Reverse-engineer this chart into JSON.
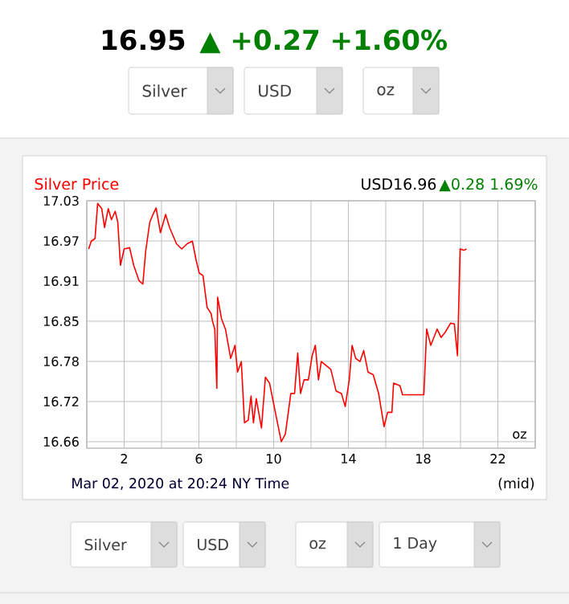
{
  "chart_data": {
    "type": "line",
    "title": "Silver Price",
    "color": "#ff0000",
    "grid": true,
    "x": [
      0.1,
      0.24,
      0.44,
      0.58,
      0.8,
      0.95,
      1.15,
      1.32,
      1.52,
      1.66,
      1.8,
      2.0,
      2.29,
      2.51,
      2.8,
      3.0,
      3.15,
      3.37,
      3.54,
      3.71,
      3.94,
      4.22,
      4.43,
      4.8,
      5.08,
      5.37,
      5.65,
      5.85,
      6.02,
      6.22,
      6.44,
      6.65,
      6.73,
      6.85,
      6.96,
      7.0,
      7.21,
      7.42,
      7.7,
      7.93,
      8.07,
      8.27,
      8.44,
      8.64,
      8.79,
      8.92,
      9.07,
      9.35,
      9.56,
      9.78,
      10.12,
      10.41,
      10.63,
      10.92,
      11.12,
      11.29,
      11.44,
      11.63,
      11.86,
      12.06,
      12.23,
      12.4,
      12.55,
      13.06,
      13.34,
      13.63,
      13.83,
      14.05,
      14.2,
      14.39,
      14.62,
      14.82,
      15.05,
      15.33,
      15.62,
      15.91,
      16.1,
      16.33,
      16.42,
      16.76,
      16.9,
      18.04,
      18.19,
      18.41,
      18.75,
      18.96,
      19.18,
      19.47,
      19.67,
      19.84,
      19.98,
      20.18,
      20.32
    ],
    "values": [
      16.956,
      16.968,
      16.972,
      17.026,
      17.018,
      16.989,
      17.018,
      17.001,
      17.014,
      16.997,
      16.931,
      16.956,
      16.958,
      16.931,
      16.907,
      16.902,
      16.952,
      16.997,
      17.009,
      17.019,
      16.981,
      17.009,
      16.989,
      16.964,
      16.956,
      16.964,
      16.968,
      16.939,
      16.919,
      16.915,
      16.866,
      16.857,
      16.845,
      16.833,
      16.742,
      16.882,
      16.849,
      16.833,
      16.788,
      16.808,
      16.767,
      16.783,
      16.689,
      16.693,
      16.73,
      16.689,
      16.726,
      16.681,
      16.759,
      16.75,
      16.701,
      16.66,
      16.672,
      16.734,
      16.734,
      16.796,
      16.734,
      16.755,
      16.755,
      16.792,
      16.808,
      16.755,
      16.783,
      16.771,
      16.738,
      16.734,
      16.714,
      16.755,
      16.808,
      16.788,
      16.783,
      16.8,
      16.767,
      16.763,
      16.734,
      16.683,
      16.705,
      16.705,
      16.75,
      16.746,
      16.732,
      16.732,
      16.833,
      16.808,
      16.833,
      16.82,
      16.828,
      16.842,
      16.841,
      16.792,
      16.956,
      16.954,
      16.956
    ],
    "xlim": [
      0,
      24
    ],
    "xticks": [
      {
        "value": 0,
        "label": null
      },
      2,
      {
        "value": 4,
        "label": null
      },
      6,
      {
        "value": 8,
        "label": null
      },
      10,
      {
        "value": 12,
        "label": null
      },
      14,
      {
        "value": 16,
        "label": null
      },
      18,
      {
        "value": 20,
        "label": null
      },
      22,
      {
        "value": 24,
        "label": null
      }
    ],
    "ylim": [
      16.65,
      17.03
    ],
    "yticks": [
      16.66,
      {
        "value": 16.7217,
        "label": "16.72"
      },
      {
        "value": 16.7833,
        "label": "16.78"
      },
      {
        "value": 16.845,
        "label": "16.85"
      },
      {
        "value": 16.9067,
        "label": "16.91"
      },
      {
        "value": 16.9683,
        "label": "16.97"
      },
      17.03
    ],
    "annotations": [
      "16.95",
      "▲ +0.27 +1.60%",
      "USD16.96",
      "▲0.28 1.69%",
      "oz",
      "Mar 02, 2020 at 20:24 NY Time",
      "(mid)",
      "Silver",
      "USD",
      "oz",
      "Silver",
      "USD",
      "oz",
      "1 Day"
    ]
  }
}
